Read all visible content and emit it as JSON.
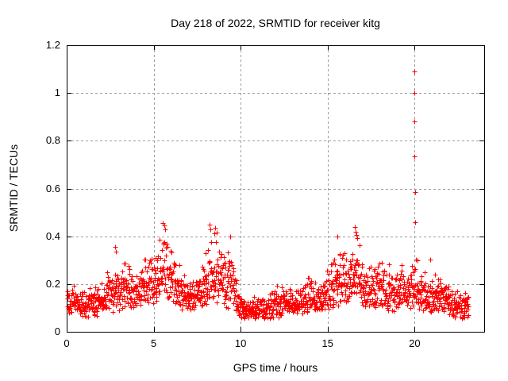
{
  "window": {
    "background": "#ffffff",
    "text_color": "#000000"
  },
  "chart_data": {
    "type": "scatter",
    "title": "Day 218 of 2022, SRMTID for receiver kitg",
    "xlabel": "GPS time / hours",
    "ylabel": "SRMTID / TECUs",
    "xlim": [
      0,
      24
    ],
    "ylim": [
      0,
      1.2
    ],
    "xticks": [
      0,
      5,
      10,
      15,
      20
    ],
    "xtick_labels": [
      "0",
      "5",
      "10",
      "15",
      "20"
    ],
    "yticks": [
      0,
      0.2,
      0.4,
      0.6,
      0.8,
      1.0,
      1.2
    ],
    "ytick_labels": [
      "0",
      "0.2",
      "0.4",
      "0.6",
      "0.8",
      "1",
      "1.2"
    ],
    "grid": {
      "visible": true,
      "style": "dashed",
      "color": "#9c9c9c",
      "dash": [
        3,
        3
      ]
    },
    "border_color": "#000000",
    "tick_length": 6,
    "marker": {
      "shape": "plus",
      "color": "#ff0000",
      "size": 7,
      "stroke_width": 1
    },
    "legend": {
      "visible": false
    },
    "series": [
      {
        "name": "SRMTID",
        "sampling": {
          "t_start": 0.02,
          "t_end": 23.1,
          "n_points": 1700,
          "seed": 42,
          "y_skew": 1.35,
          "t_jitter": 0.015
        },
        "envelope": [
          [
            0.0,
            0.07,
            0.22
          ],
          [
            0.5,
            0.07,
            0.2
          ],
          [
            1.0,
            0.06,
            0.18
          ],
          [
            1.5,
            0.06,
            0.2
          ],
          [
            2.0,
            0.07,
            0.22
          ],
          [
            2.5,
            0.08,
            0.27
          ],
          [
            3.0,
            0.08,
            0.3
          ],
          [
            3.4,
            0.1,
            0.33
          ],
          [
            3.8,
            0.08,
            0.26
          ],
          [
            4.2,
            0.09,
            0.28
          ],
          [
            4.6,
            0.1,
            0.33
          ],
          [
            5.0,
            0.1,
            0.34
          ],
          [
            5.4,
            0.13,
            0.44
          ],
          [
            5.7,
            0.15,
            0.46
          ],
          [
            6.0,
            0.12,
            0.42
          ],
          [
            6.3,
            0.1,
            0.34
          ],
          [
            6.7,
            0.08,
            0.27
          ],
          [
            7.1,
            0.08,
            0.25
          ],
          [
            7.5,
            0.09,
            0.28
          ],
          [
            7.9,
            0.1,
            0.32
          ],
          [
            8.2,
            0.11,
            0.45
          ],
          [
            8.6,
            0.12,
            0.43
          ],
          [
            9.0,
            0.1,
            0.34
          ],
          [
            9.4,
            0.09,
            0.4
          ],
          [
            9.7,
            0.07,
            0.25
          ],
          [
            10.0,
            0.06,
            0.17
          ],
          [
            10.5,
            0.05,
            0.15
          ],
          [
            11.0,
            0.05,
            0.16
          ],
          [
            11.5,
            0.05,
            0.17
          ],
          [
            12.0,
            0.06,
            0.19
          ],
          [
            12.5,
            0.06,
            0.21
          ],
          [
            13.0,
            0.06,
            0.18
          ],
          [
            13.5,
            0.07,
            0.21
          ],
          [
            13.9,
            0.08,
            0.29
          ],
          [
            14.3,
            0.08,
            0.21
          ],
          [
            14.7,
            0.08,
            0.24
          ],
          [
            15.1,
            0.09,
            0.29
          ],
          [
            15.5,
            0.1,
            0.4
          ],
          [
            15.9,
            0.1,
            0.36
          ],
          [
            16.2,
            0.1,
            0.31
          ],
          [
            16.6,
            0.12,
            0.44
          ],
          [
            16.9,
            0.11,
            0.39
          ],
          [
            17.2,
            0.1,
            0.32
          ],
          [
            17.6,
            0.08,
            0.28
          ],
          [
            18.0,
            0.09,
            0.34
          ],
          [
            18.4,
            0.08,
            0.31
          ],
          [
            18.8,
            0.08,
            0.27
          ],
          [
            19.2,
            0.09,
            0.29
          ],
          [
            19.6,
            0.09,
            0.27
          ],
          [
            20.0,
            0.11,
            0.34
          ],
          [
            20.4,
            0.08,
            0.26
          ],
          [
            20.9,
            0.08,
            0.24
          ],
          [
            21.3,
            0.08,
            0.25
          ],
          [
            21.7,
            0.07,
            0.22
          ],
          [
            22.1,
            0.06,
            0.18
          ],
          [
            22.5,
            0.05,
            0.2
          ],
          [
            22.8,
            0.05,
            0.18
          ],
          [
            23.1,
            0.05,
            0.16
          ]
        ],
        "outliers": [
          [
            2.8,
            0.355
          ],
          [
            2.84,
            0.335
          ],
          [
            5.52,
            0.455
          ],
          [
            5.6,
            0.445
          ],
          [
            5.66,
            0.43
          ],
          [
            8.22,
            0.45
          ],
          [
            8.28,
            0.43
          ],
          [
            8.55,
            0.435
          ],
          [
            9.38,
            0.4
          ],
          [
            15.55,
            0.4
          ],
          [
            16.55,
            0.44
          ],
          [
            16.62,
            0.42
          ],
          [
            20.0,
            1.09
          ],
          [
            20.0,
            1.0
          ],
          [
            20.0,
            0.88
          ],
          [
            20.0,
            0.735
          ],
          [
            20.03,
            0.585
          ],
          [
            20.03,
            0.46
          ],
          [
            20.9,
            0.303
          ]
        ]
      }
    ]
  }
}
